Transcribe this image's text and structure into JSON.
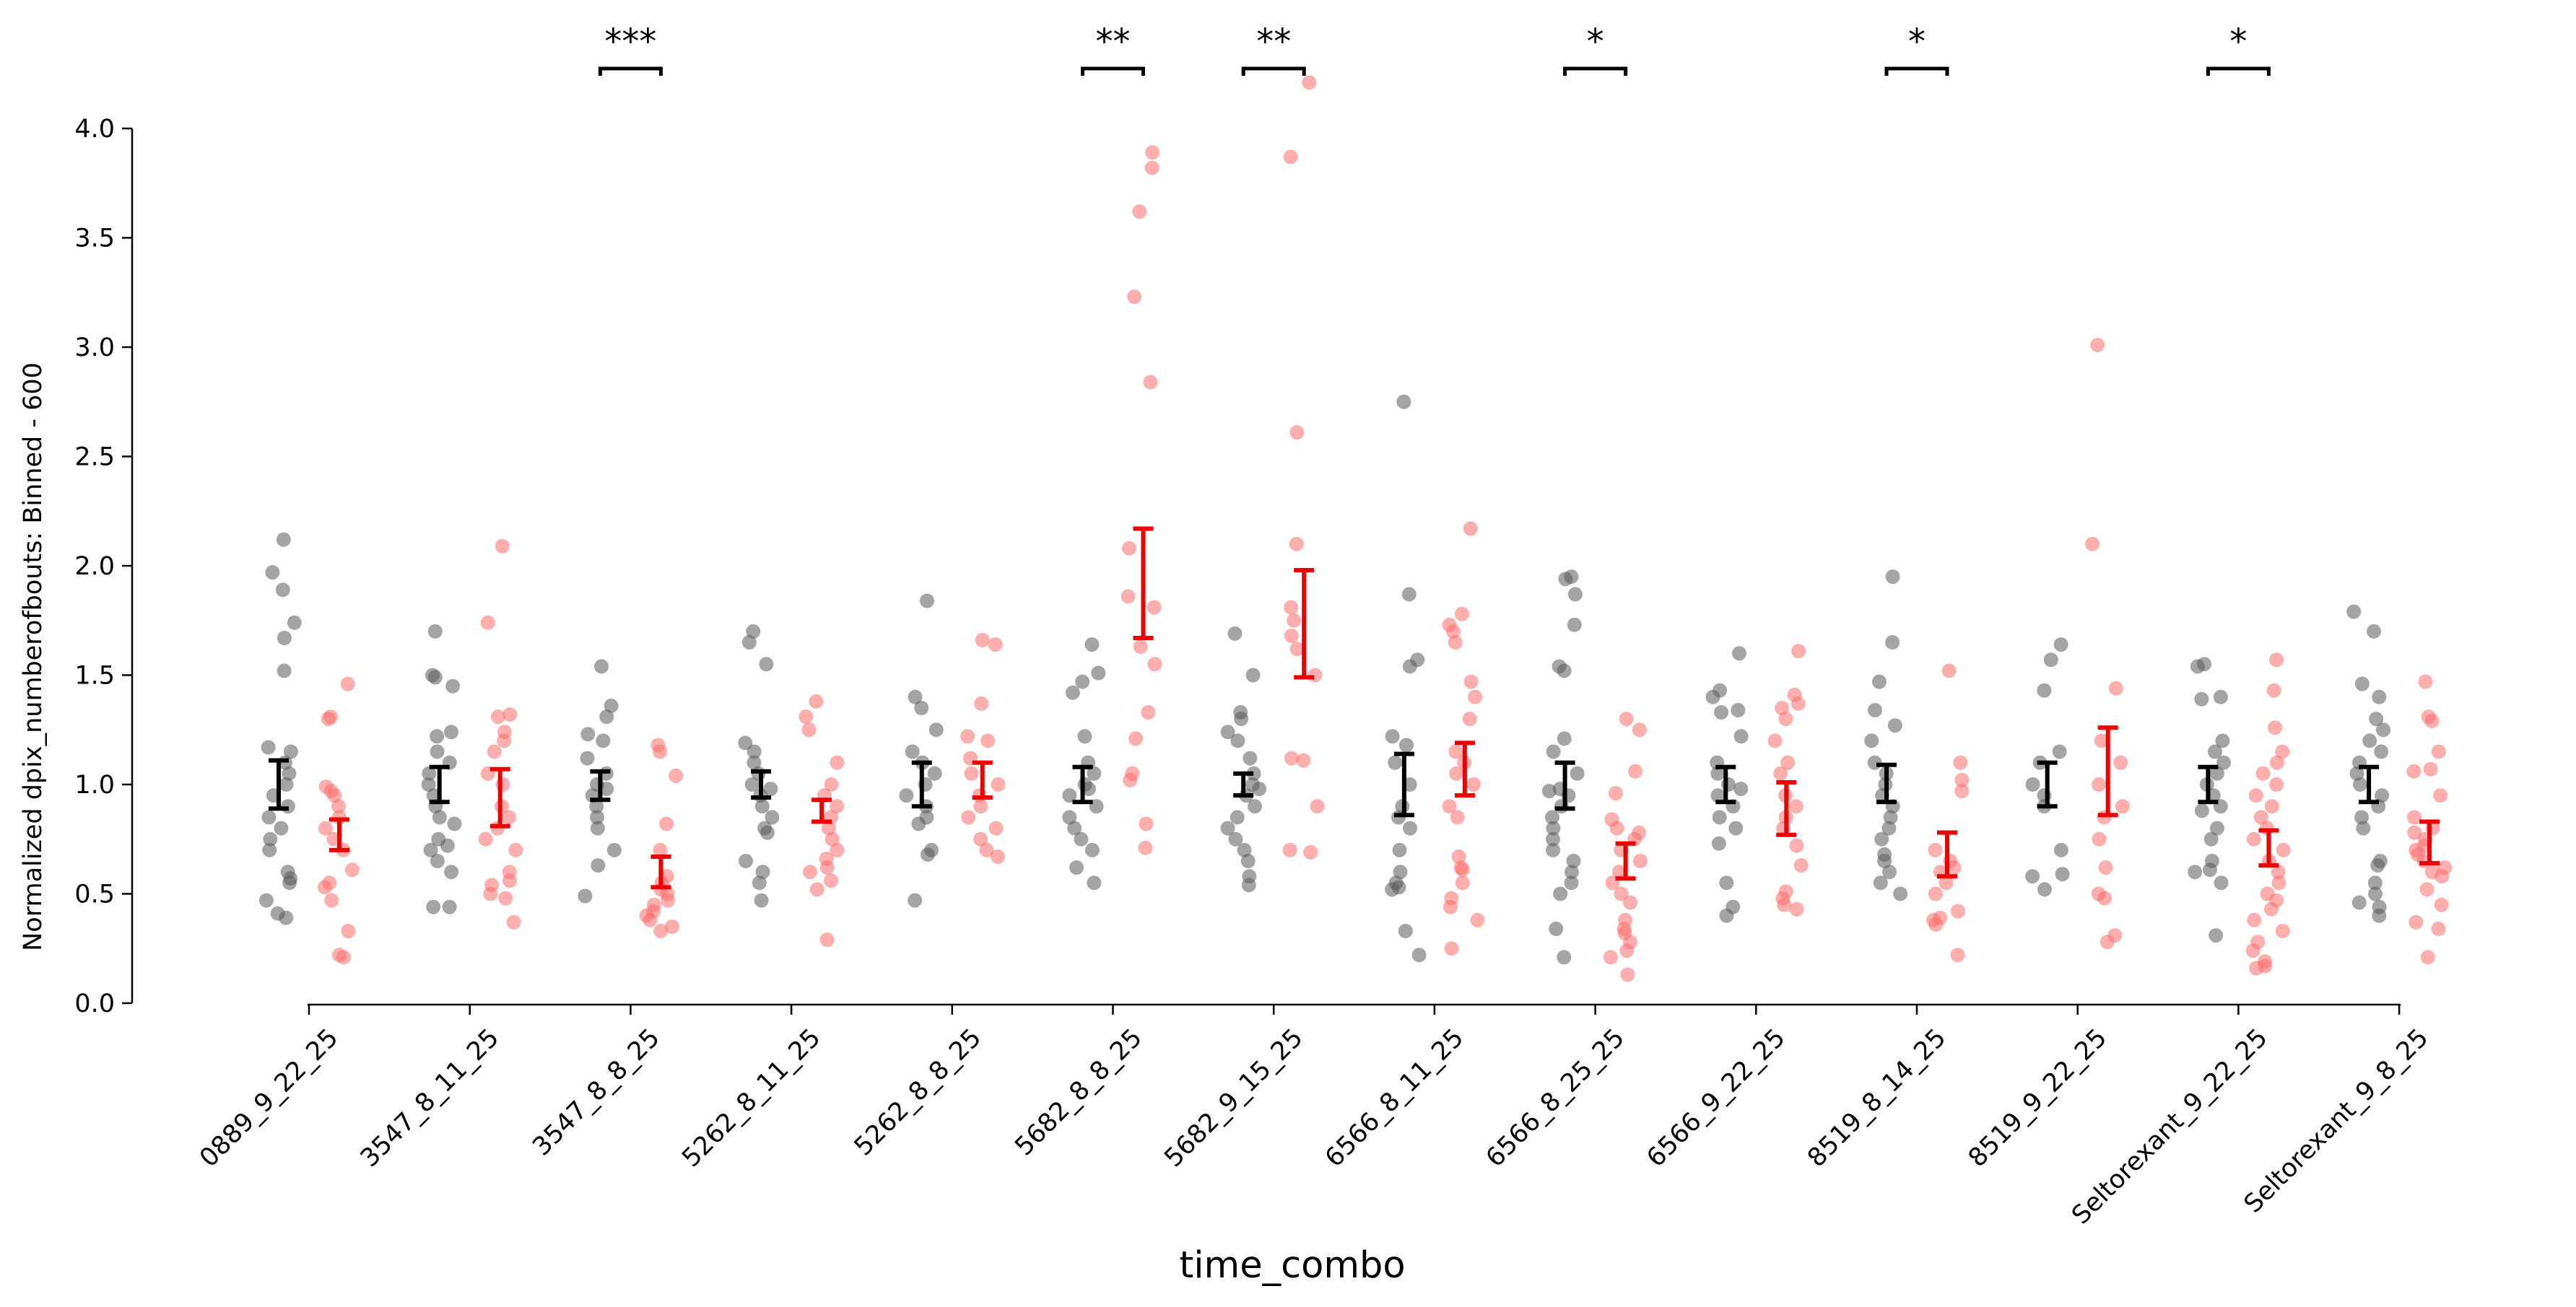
{
  "chart_data": {
    "type": "scatter",
    "xlabel": "time_combo",
    "ylabel": "Normalized dpix_numberofbouts: Binned - 600",
    "ylim": [
      0,
      4.0
    ],
    "yticks": [
      0.0,
      0.5,
      1.0,
      1.5,
      2.0,
      2.5,
      3.0,
      3.5,
      4.0
    ],
    "ytick_labels": [
      "0.0",
      "0.5",
      "1.0",
      "1.5",
      "2.0",
      "2.5",
      "3.0",
      "3.5",
      "4.0"
    ],
    "grid": false,
    "legend": "none",
    "categories": [
      "0889_9_22_25",
      "3547_8_11_25",
      "3547_8_8_25",
      "5262_8_11_25",
      "5262_8_8_25",
      "5682_8_8_25",
      "5682_9_15_25",
      "6566_8_11_25",
      "6566_8_25_25",
      "6566_9_22_25",
      "8519_8_14_25",
      "8519_9_22_25",
      "Seltorexant_9_22_25",
      "Seltorexant_9_8_25"
    ],
    "series": [
      {
        "color": "#000000",
        "point_color": "#5a5a5a",
        "point_alpha": 0.55,
        "groups": [
          {
            "mean": 1.0,
            "err_low": 0.89,
            "err_high": 1.11,
            "points": [
              2.12,
              1.97,
              1.89,
              1.74,
              1.67,
              1.52,
              1.17,
              1.15,
              1.1,
              1.05,
              1.0,
              0.95,
              0.9,
              0.85,
              0.8,
              0.75,
              0.7,
              0.6,
              0.57,
              0.55,
              0.47,
              0.41,
              0.39
            ]
          },
          {
            "mean": 1.0,
            "err_low": 0.92,
            "err_high": 1.08,
            "points": [
              1.7,
              1.5,
              1.49,
              1.45,
              1.24,
              1.22,
              1.15,
              1.1,
              1.05,
              1.0,
              0.95,
              0.9,
              0.85,
              0.82,
              0.75,
              0.72,
              0.7,
              0.65,
              0.6,
              0.44,
              0.44
            ]
          },
          {
            "mean": 1.0,
            "err_low": 0.93,
            "err_high": 1.06,
            "points": [
              1.54,
              1.36,
              1.31,
              1.23,
              1.2,
              1.12,
              1.05,
              1.0,
              0.98,
              0.95,
              0.9,
              0.85,
              0.8,
              0.7,
              0.63,
              0.49
            ]
          },
          {
            "mean": 1.0,
            "err_low": 0.94,
            "err_high": 1.06,
            "points": [
              1.7,
              1.65,
              1.55,
              1.19,
              1.15,
              1.1,
              1.05,
              1.0,
              0.98,
              0.95,
              0.9,
              0.85,
              0.8,
              0.78,
              0.65,
              0.6,
              0.55,
              0.47
            ]
          },
          {
            "mean": 1.0,
            "err_low": 0.9,
            "err_high": 1.1,
            "points": [
              1.84,
              1.4,
              1.35,
              1.25,
              1.15,
              1.1,
              1.05,
              1.0,
              0.95,
              0.9,
              0.85,
              0.82,
              0.7,
              0.68,
              0.47
            ]
          },
          {
            "mean": 1.0,
            "err_low": 0.92,
            "err_high": 1.08,
            "points": [
              1.64,
              1.51,
              1.47,
              1.42,
              1.22,
              1.1,
              1.05,
              1.0,
              0.98,
              0.95,
              0.9,
              0.85,
              0.8,
              0.75,
              0.7,
              0.62,
              0.55
            ]
          },
          {
            "mean": 1.0,
            "err_low": 0.95,
            "err_high": 1.05,
            "points": [
              1.69,
              1.5,
              1.33,
              1.3,
              1.24,
              1.2,
              1.12,
              1.05,
              1.0,
              0.98,
              0.95,
              0.9,
              0.85,
              0.8,
              0.75,
              0.7,
              0.65,
              0.58,
              0.54
            ]
          },
          {
            "mean": 1.0,
            "err_low": 0.86,
            "err_high": 1.14,
            "points": [
              2.75,
              1.87,
              1.57,
              1.54,
              1.22,
              1.18,
              1.1,
              1.0,
              0.9,
              0.85,
              0.8,
              0.7,
              0.6,
              0.55,
              0.53,
              0.52,
              0.33,
              0.22
            ]
          },
          {
            "mean": 1.0,
            "err_low": 0.89,
            "err_high": 1.1,
            "points": [
              1.95,
              1.94,
              1.87,
              1.73,
              1.54,
              1.52,
              1.21,
              1.15,
              1.05,
              0.98,
              0.97,
              0.95,
              0.9,
              0.85,
              0.8,
              0.75,
              0.7,
              0.65,
              0.6,
              0.55,
              0.5,
              0.34,
              0.21
            ]
          },
          {
            "mean": 1.0,
            "err_low": 0.92,
            "err_high": 1.08,
            "points": [
              1.6,
              1.43,
              1.4,
              1.34,
              1.33,
              1.22,
              1.1,
              1.05,
              1.0,
              0.98,
              0.95,
              0.9,
              0.85,
              0.8,
              0.73,
              0.55,
              0.44,
              0.4
            ]
          },
          {
            "mean": 1.0,
            "err_low": 0.92,
            "err_high": 1.09,
            "points": [
              1.95,
              1.65,
              1.47,
              1.34,
              1.27,
              1.2,
              1.1,
              1.05,
              1.0,
              0.95,
              0.9,
              0.85,
              0.8,
              0.75,
              0.68,
              0.65,
              0.6,
              0.55,
              0.5
            ]
          },
          {
            "mean": 1.0,
            "err_low": 0.9,
            "err_high": 1.1,
            "points": [
              1.64,
              1.57,
              1.43,
              1.15,
              1.1,
              1.0,
              0.95,
              0.9,
              0.7,
              0.59,
              0.58,
              0.52
            ]
          },
          {
            "mean": 1.0,
            "err_low": 0.92,
            "err_high": 1.08,
            "points": [
              1.55,
              1.54,
              1.4,
              1.39,
              1.2,
              1.15,
              1.1,
              1.05,
              1.0,
              0.95,
              0.9,
              0.88,
              0.8,
              0.75,
              0.65,
              0.61,
              0.6,
              0.55,
              0.31
            ]
          },
          {
            "mean": 1.0,
            "err_low": 0.92,
            "err_high": 1.08,
            "points": [
              1.79,
              1.7,
              1.46,
              1.4,
              1.3,
              1.25,
              1.2,
              1.15,
              1.1,
              1.05,
              1.0,
              0.95,
              0.9,
              0.85,
              0.8,
              0.65,
              0.63,
              0.55,
              0.5,
              0.46,
              0.44,
              0.4
            ]
          }
        ]
      },
      {
        "color": "#ee0000",
        "point_color": "#ff6b6b",
        "point_alpha": 0.55,
        "groups": [
          {
            "mean": 0.77,
            "err_low": 0.7,
            "err_high": 0.84,
            "points": [
              1.46,
              1.31,
              1.3,
              0.99,
              0.97,
              0.95,
              0.9,
              0.85,
              0.8,
              0.75,
              0.7,
              0.61,
              0.55,
              0.53,
              0.47,
              0.33,
              0.22,
              0.21
            ]
          },
          {
            "mean": 0.94,
            "err_low": 0.81,
            "err_high": 1.07,
            "points": [
              2.09,
              1.74,
              1.32,
              1.31,
              1.24,
              1.2,
              1.15,
              1.05,
              1.0,
              0.9,
              0.85,
              0.8,
              0.75,
              0.7,
              0.6,
              0.56,
              0.54,
              0.5,
              0.48,
              0.37
            ]
          },
          {
            "mean": 0.6,
            "err_low": 0.53,
            "err_high": 0.67,
            "points": [
              1.18,
              1.15,
              1.04,
              0.82,
              0.7,
              0.58,
              0.55,
              0.52,
              0.5,
              0.47,
              0.45,
              0.42,
              0.4,
              0.38,
              0.35,
              0.33
            ]
          },
          {
            "mean": 0.88,
            "err_low": 0.83,
            "err_high": 0.93,
            "points": [
              1.38,
              1.31,
              1.25,
              1.1,
              1.0,
              0.95,
              0.9,
              0.85,
              0.8,
              0.75,
              0.7,
              0.66,
              0.62,
              0.6,
              0.56,
              0.52,
              0.29
            ]
          },
          {
            "mean": 1.02,
            "err_low": 0.94,
            "err_high": 1.1,
            "points": [
              1.66,
              1.64,
              1.37,
              1.22,
              1.2,
              1.12,
              1.05,
              1.0,
              0.95,
              0.9,
              0.85,
              0.8,
              0.75,
              0.7,
              0.67
            ]
          },
          {
            "mean": 1.92,
            "err_low": 1.67,
            "err_high": 2.17,
            "points": [
              3.89,
              3.82,
              3.62,
              3.23,
              2.84,
              2.08,
              1.86,
              1.81,
              1.63,
              1.55,
              1.33,
              1.21,
              1.05,
              1.02,
              0.82,
              0.71
            ]
          },
          {
            "mean": 1.73,
            "err_low": 1.49,
            "err_high": 1.98,
            "points": [
              4.21,
              3.87,
              2.61,
              2.1,
              1.81,
              1.75,
              1.68,
              1.62,
              1.5,
              1.12,
              1.11,
              0.9,
              0.7,
              0.69
            ]
          },
          {
            "mean": 1.07,
            "err_low": 0.95,
            "err_high": 1.19,
            "points": [
              2.17,
              1.78,
              1.73,
              1.7,
              1.65,
              1.47,
              1.4,
              1.3,
              1.15,
              1.1,
              1.05,
              1.0,
              0.9,
              0.85,
              0.67,
              0.62,
              0.61,
              0.55,
              0.48,
              0.44,
              0.38,
              0.25
            ]
          },
          {
            "mean": 0.65,
            "err_low": 0.57,
            "err_high": 0.73,
            "points": [
              1.3,
              1.25,
              1.06,
              0.96,
              0.84,
              0.8,
              0.78,
              0.75,
              0.7,
              0.65,
              0.6,
              0.55,
              0.5,
              0.46,
              0.38,
              0.34,
              0.32,
              0.28,
              0.24,
              0.21,
              0.13
            ]
          },
          {
            "mean": 0.89,
            "err_low": 0.77,
            "err_high": 1.01,
            "points": [
              1.61,
              1.41,
              1.37,
              1.35,
              1.3,
              1.2,
              1.1,
              1.05,
              0.95,
              0.9,
              0.85,
              0.8,
              0.72,
              0.63,
              0.51,
              0.48,
              0.45,
              0.43
            ]
          },
          {
            "mean": 0.68,
            "err_low": 0.58,
            "err_high": 0.78,
            "points": [
              1.52,
              1.1,
              1.02,
              0.97,
              0.7,
              0.65,
              0.62,
              0.6,
              0.55,
              0.5,
              0.42,
              0.39,
              0.38,
              0.36,
              0.22
            ]
          },
          {
            "mean": 1.06,
            "err_low": 0.86,
            "err_high": 1.26,
            "points": [
              3.01,
              2.1,
              1.44,
              1.2,
              1.1,
              1.0,
              0.9,
              0.85,
              0.75,
              0.62,
              0.5,
              0.48,
              0.31,
              0.28
            ]
          },
          {
            "mean": 0.71,
            "err_low": 0.63,
            "err_high": 0.79,
            "points": [
              1.57,
              1.43,
              1.26,
              1.15,
              1.1,
              1.05,
              1.0,
              0.95,
              0.9,
              0.85,
              0.8,
              0.75,
              0.7,
              0.65,
              0.6,
              0.55,
              0.5,
              0.47,
              0.43,
              0.38,
              0.33,
              0.28,
              0.24,
              0.19,
              0.17,
              0.16
            ]
          },
          {
            "mean": 0.73,
            "err_low": 0.64,
            "err_high": 0.83,
            "points": [
              1.47,
              1.31,
              1.29,
              1.15,
              1.07,
              1.06,
              0.95,
              0.85,
              0.8,
              0.78,
              0.75,
              0.72,
              0.7,
              0.68,
              0.65,
              0.62,
              0.6,
              0.58,
              0.52,
              0.45,
              0.37,
              0.34,
              0.21
            ]
          }
        ]
      }
    ],
    "significance": [
      {
        "category_index": 2,
        "label": "***"
      },
      {
        "category_index": 5,
        "label": "**"
      },
      {
        "category_index": 6,
        "label": "**"
      },
      {
        "category_index": 8,
        "label": "*"
      },
      {
        "category_index": 10,
        "label": "*"
      },
      {
        "category_index": 12,
        "label": "*"
      }
    ]
  }
}
